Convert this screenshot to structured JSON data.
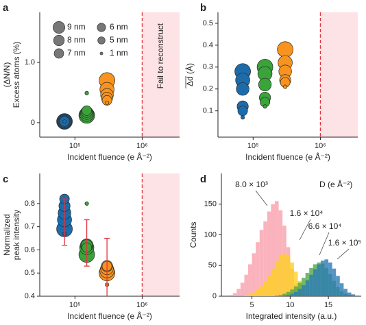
{
  "chart_data": [
    {
      "type": "bubble",
      "panel_label": "a",
      "xlabel": "Incident fluence (e Å⁻²)",
      "ylabel": [
        "(ΔN/N)",
        "Excess atoms (%)"
      ],
      "xscale": "log",
      "xlim": [
        30000,
        3600000
      ],
      "xticks": [
        {
          "value": 100000,
          "label": "10⁵"
        },
        {
          "value": 1000000,
          "label": "10⁶"
        }
      ],
      "ylim": [
        -0.24,
        1.83
      ],
      "yticks": [
        0,
        {
          "value": 1,
          "label": "1.0"
        }
      ],
      "sizes": [
        9,
        8,
        7,
        6,
        5,
        1
      ],
      "size_labels": [
        "9 nm",
        "8 nm",
        "7 nm",
        "6 nm",
        "5 nm",
        "1 nm"
      ],
      "legend": "upper left",
      "region": {
        "from": 1000000,
        "label": "Fail to reconstruct",
        "color": "#fde3e6",
        "line_color": "#e2323c"
      },
      "series": [
        {
          "color": "#1c6cab",
          "x": 70000,
          "values": [
            0.02,
            0.02,
            0.02,
            0.02,
            0.02,
            0.02
          ]
        },
        {
          "color": "#3aa33a",
          "x": 150000,
          "values": [
            0.12,
            0.14,
            0.16,
            0.18,
            0.2,
            0.49
          ]
        },
        {
          "color": "#f7931e",
          "x": 300000,
          "values": [
            0.7,
            0.55,
            0.46,
            0.41,
            0.37,
            0.33
          ]
        }
      ]
    },
    {
      "type": "bubble",
      "panel_label": "b",
      "xlabel": "Incident fluence (e Å⁻²)",
      "ylabel": [
        "Δd (Å)"
      ],
      "xscale": "log",
      "xlim": [
        30000,
        3600000
      ],
      "xticks": [
        {
          "value": 100000,
          "label": "10⁵"
        },
        {
          "value": 1000000,
          "label": "10⁶"
        }
      ],
      "ylim": [
        -0.02,
        0.55
      ],
      "yticks": [
        0.1,
        0.2,
        0.3,
        0.4,
        0.5
      ],
      "sizes": [
        9,
        8,
        7,
        6,
        5,
        1
      ],
      "region": {
        "from": 1000000,
        "color": "#fde3e6",
        "line_color": "#e2323c"
      },
      "series": [
        {
          "color": "#1c6cab",
          "x": 70000,
          "values": [
            0.28,
            0.24,
            0.2,
            0.12,
            0.1,
            0.07
          ]
        },
        {
          "color": "#3aa33a",
          "x": 150000,
          "values": [
            0.3,
            0.27,
            0.22,
            0.16,
            0.14,
            0.12
          ]
        },
        {
          "color": "#f7931e",
          "x": 300000,
          "values": [
            0.38,
            0.32,
            0.28,
            0.24,
            0.23,
            0.21
          ]
        }
      ]
    },
    {
      "type": "bubble",
      "panel_label": "c",
      "xlabel": "Incident fluence (e Å⁻²)",
      "ylabel": [
        "Normalized",
        "peak intensity"
      ],
      "xscale": "log",
      "xlim": [
        30000,
        3600000
      ],
      "xticks": [
        {
          "value": 100000,
          "label": "10⁵"
        },
        {
          "value": 1000000,
          "label": "10⁶"
        }
      ],
      "ylim": [
        0.4,
        0.93
      ],
      "yticks": [
        0.4,
        0.5,
        0.6,
        0.7,
        0.8
      ],
      "sizes": [
        9,
        8,
        7,
        6,
        5,
        1
      ],
      "error_color": "#e2323c",
      "region": {
        "from": 1000000,
        "color": "#fde3e6",
        "line_color": "#e2323c"
      },
      "series": [
        {
          "color": "#1c6cab",
          "x": 70000,
          "values": [
            0.69,
            0.73,
            0.76,
            0.79,
            0.82,
            0.67
          ],
          "mean": 0.72,
          "error": 0.1
        },
        {
          "color": "#3aa33a",
          "x": 150000,
          "values": [
            0.58,
            0.61,
            0.62,
            0.62,
            0.61,
            0.8
          ],
          "mean": 0.63,
          "error": 0.1
        },
        {
          "color": "#f7931e",
          "x": 300000,
          "values": [
            0.5,
            0.51,
            0.52,
            0.53,
            0.53,
            0.45
          ],
          "mean": 0.51,
          "error": 0.14
        }
      ]
    },
    {
      "type": "histogram",
      "panel_label": "d",
      "xlabel": "Integrated intensity (a.u.)",
      "ylabel": [
        "Counts"
      ],
      "legend_title": "D (e Å⁻²)",
      "xlim": [
        1,
        19.3
      ],
      "xticks": [
        5,
        10,
        15
      ],
      "ylim": [
        0,
        200
      ],
      "yticks": [
        0,
        50,
        100,
        150
      ],
      "bins": [
        2,
        2.5,
        3,
        3.5,
        4,
        4.5,
        5,
        5.5,
        6,
        6.5,
        7,
        7.5,
        8,
        8.5,
        9,
        9.5,
        10,
        10.5,
        11,
        11.5,
        12,
        12.5,
        13,
        13.5,
        14,
        14.5,
        15,
        15.5,
        16,
        16.5,
        17,
        17.5,
        18,
        18.5,
        19
      ],
      "series": [
        {
          "name": "8.0 × 10³",
          "color": "#f9a0ab",
          "values": [
            2,
            5,
            12,
            22,
            35,
            52,
            70,
            88,
            108,
            122,
            138,
            150,
            155,
            140,
            115,
            80,
            45,
            20,
            8,
            3,
            1,
            0,
            0,
            0,
            0,
            0,
            0,
            0,
            0,
            0,
            0,
            0,
            0,
            0
          ]
        },
        {
          "name": "1.6 × 10⁴",
          "color": "#ffcf1f",
          "values": [
            0,
            0,
            0,
            0,
            1,
            3,
            6,
            10,
            16,
            24,
            34,
            45,
            56,
            66,
            70,
            66,
            55,
            40,
            25,
            12,
            5,
            2,
            0,
            0,
            0,
            0,
            0,
            0,
            0,
            0,
            0,
            0,
            0,
            0
          ]
        },
        {
          "name": "6.6 × 10⁴",
          "color": "#4fa847",
          "values": [
            0,
            0,
            0,
            0,
            0,
            0,
            0,
            0,
            0,
            0,
            0,
            0,
            1,
            2,
            4,
            7,
            11,
            16,
            22,
            30,
            38,
            46,
            52,
            55,
            53,
            46,
            36,
            25,
            15,
            8,
            4,
            2,
            1,
            0
          ]
        },
        {
          "name": "1.6 × 10⁵",
          "color": "#2b7bb5",
          "values": [
            0,
            0,
            0,
            0,
            0,
            0,
            0,
            0,
            0,
            0,
            0,
            0,
            0,
            0,
            1,
            2,
            4,
            7,
            12,
            18,
            26,
            35,
            44,
            52,
            58,
            60,
            55,
            45,
            33,
            21,
            12,
            6,
            3,
            1
          ]
        }
      ]
    }
  ]
}
